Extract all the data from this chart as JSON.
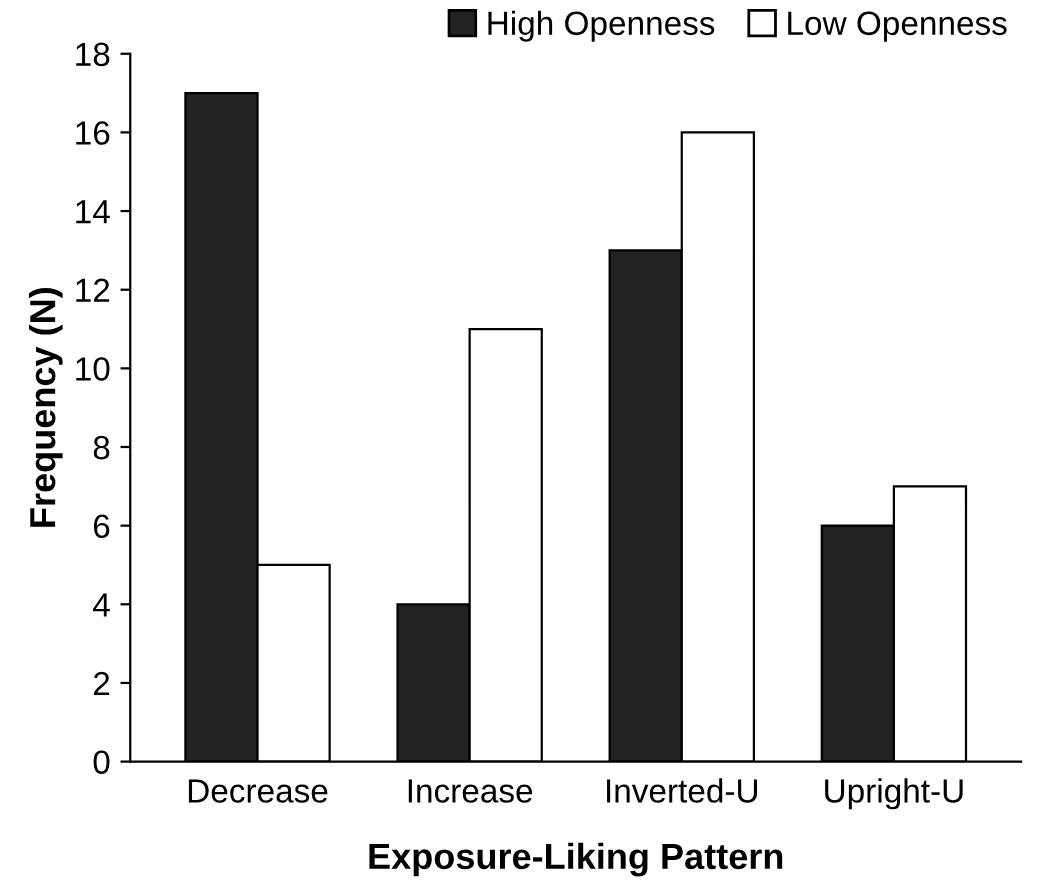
{
  "chart_data": {
    "type": "bar",
    "xlabel": "Exposure-Liking Pattern",
    "ylabel": "Frequency (N)",
    "categories": [
      "Decrease",
      "Increase",
      "Inverted-U",
      "Upright-U"
    ],
    "series": [
      {
        "name": "High Openness",
        "color": "#222222",
        "values": [
          17,
          4,
          13,
          6
        ]
      },
      {
        "name": "Low Openness",
        "color": "#ffffff",
        "values": [
          5,
          11,
          16,
          7
        ]
      }
    ],
    "ylim": [
      0,
      18
    ],
    "yticks": [
      0,
      2,
      4,
      6,
      8,
      10,
      12,
      14,
      16,
      18
    ],
    "grid": false,
    "legend": "top right"
  }
}
